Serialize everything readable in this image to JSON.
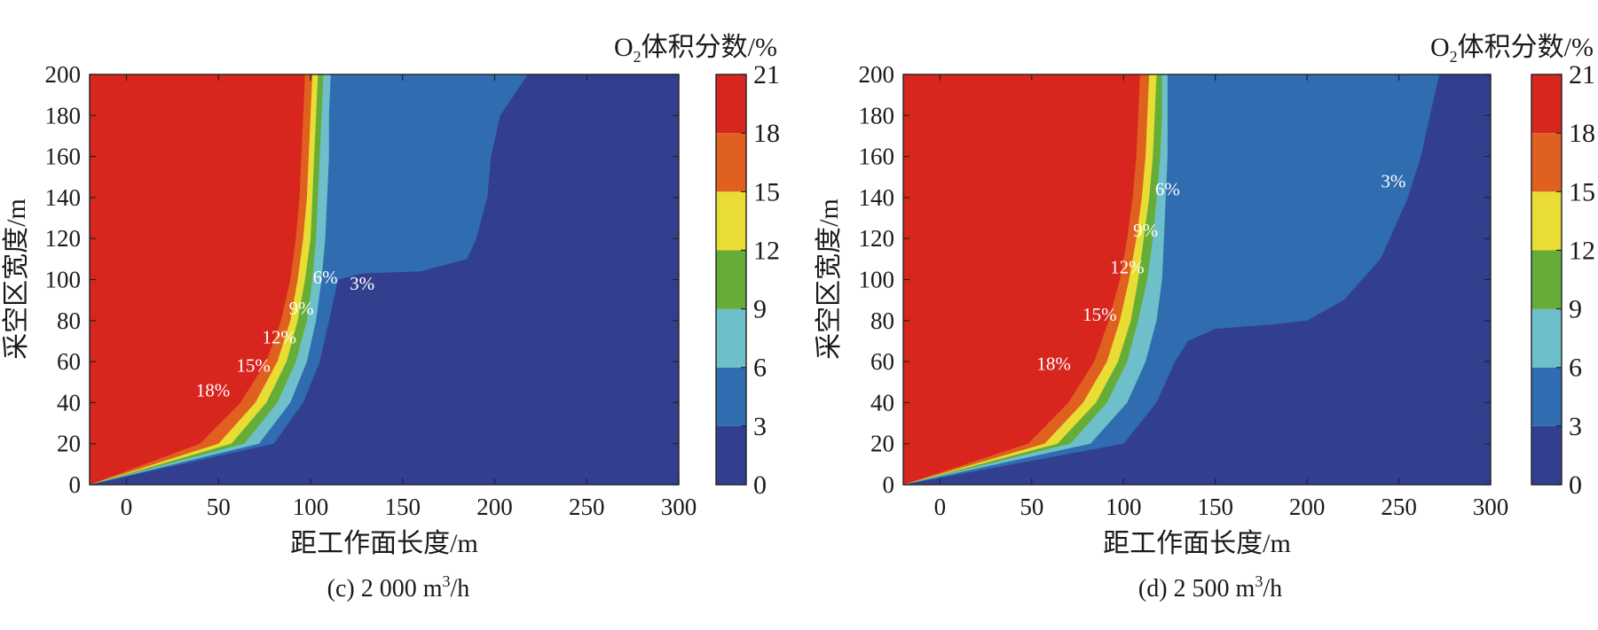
{
  "colors": {
    "level_0_3": "#323f8e",
    "level_3_6": "#2f6cb0",
    "level_6_9": "#6dbfc9",
    "level_9_12": "#66ad38",
    "level_12_15": "#e8dc35",
    "level_15_18": "#e0611f",
    "level_18_21": "#d8261f"
  },
  "chart_data": [
    {
      "type": "contour",
      "caption_prefix": "(c) 2 000 m",
      "caption_sup": "3",
      "caption_suffix": "/h",
      "xlabel": "距工作面长度/m",
      "ylabel": "采空区宽度/m",
      "colorbar_title_pre": "O",
      "colorbar_title_sub": "2",
      "colorbar_title_post": "体积分数/%",
      "xlim": [
        -20,
        300
      ],
      "ylim": [
        0,
        200
      ],
      "x_ticks": [
        "0",
        "50",
        "100",
        "150",
        "200",
        "250",
        "300"
      ],
      "y_ticks": [
        "0",
        "20",
        "40",
        "60",
        "80",
        "100",
        "120",
        "140",
        "160",
        "180",
        "200"
      ],
      "colorbar_ticks": [
        "0",
        "3",
        "6",
        "9",
        "12",
        "15",
        "18",
        "21"
      ],
      "contours": [
        {
          "level": 18,
          "x_at_y": [
            [
              0,
              -20
            ],
            [
              20,
              40
            ],
            [
              40,
              62
            ],
            [
              60,
              76
            ],
            [
              80,
              84
            ],
            [
              100,
              89
            ],
            [
              120,
              92
            ],
            [
              140,
              94
            ],
            [
              160,
              95
            ],
            [
              180,
              96
            ],
            [
              200,
              97
            ]
          ]
        },
        {
          "level": 15,
          "x_at_y": [
            [
              0,
              -20
            ],
            [
              20,
              50
            ],
            [
              40,
              70
            ],
            [
              60,
              82
            ],
            [
              80,
              89
            ],
            [
              100,
              93
            ],
            [
              120,
              96
            ],
            [
              140,
              98
            ],
            [
              160,
              99
            ],
            [
              180,
              100
            ],
            [
              200,
              101
            ]
          ]
        },
        {
          "level": 12,
          "x_at_y": [
            [
              0,
              -20
            ],
            [
              20,
              57
            ],
            [
              40,
              76
            ],
            [
              60,
              87
            ],
            [
              80,
              93
            ],
            [
              100,
              97
            ],
            [
              120,
              100
            ],
            [
              140,
              101
            ],
            [
              160,
              102
            ],
            [
              180,
              103
            ],
            [
              200,
              104
            ]
          ]
        },
        {
          "level": 9,
          "x_at_y": [
            [
              0,
              -20
            ],
            [
              20,
              64
            ],
            [
              40,
              82
            ],
            [
              60,
              92
            ],
            [
              80,
              98
            ],
            [
              100,
              101
            ],
            [
              120,
              103
            ],
            [
              140,
              104
            ],
            [
              160,
              105
            ],
            [
              180,
              106
            ],
            [
              200,
              107
            ]
          ]
        },
        {
          "level": 6,
          "x_at_y": [
            [
              0,
              -20
            ],
            [
              20,
              72
            ],
            [
              40,
              89
            ],
            [
              60,
              98
            ],
            [
              80,
              103
            ],
            [
              100,
              106
            ],
            [
              120,
              108
            ],
            [
              140,
              109
            ],
            [
              160,
              110
            ],
            [
              180,
              110
            ],
            [
              200,
              111
            ]
          ]
        },
        {
          "level": 3,
          "x_at_y": [
            [
              0,
              -20
            ],
            [
              20,
              80
            ],
            [
              40,
              96
            ],
            [
              60,
              105
            ],
            [
              80,
              110
            ],
            [
              100,
              115
            ],
            [
              103,
              128
            ],
            [
              104,
              160
            ],
            [
              110,
              185
            ],
            [
              120,
              190
            ],
            [
              140,
              196
            ],
            [
              160,
              198
            ],
            [
              180,
              203
            ],
            [
              200,
              218
            ]
          ]
        }
      ],
      "labels": [
        {
          "text": "18%",
          "x": 47,
          "y": 46
        },
        {
          "text": "15%",
          "x": 69,
          "y": 58
        },
        {
          "text": "12%",
          "x": 83,
          "y": 72
        },
        {
          "text": "9%",
          "x": 95,
          "y": 86
        },
        {
          "text": "6%",
          "x": 108,
          "y": 101
        },
        {
          "text": "3%",
          "x": 128,
          "y": 98
        }
      ]
    },
    {
      "type": "contour",
      "caption_prefix": "(d) 2 500 m",
      "caption_sup": "3",
      "caption_suffix": "/h",
      "xlabel": "距工作面长度/m",
      "ylabel": "采空区宽度/m",
      "colorbar_title_pre": "O",
      "colorbar_title_sub": "2",
      "colorbar_title_post": "体积分数/%",
      "xlim": [
        -20,
        300
      ],
      "ylim": [
        0,
        200
      ],
      "x_ticks": [
        "0",
        "50",
        "100",
        "150",
        "200",
        "250",
        "300"
      ],
      "y_ticks": [
        "0",
        "20",
        "40",
        "60",
        "80",
        "100",
        "120",
        "140",
        "160",
        "180",
        "200"
      ],
      "colorbar_ticks": [
        "0",
        "3",
        "6",
        "9",
        "12",
        "15",
        "18",
        "21"
      ],
      "contours": [
        {
          "level": 18,
          "x_at_y": [
            [
              0,
              -20
            ],
            [
              20,
              48
            ],
            [
              40,
              70
            ],
            [
              60,
              84
            ],
            [
              80,
              92
            ],
            [
              100,
              98
            ],
            [
              120,
              102
            ],
            [
              140,
              105
            ],
            [
              160,
              107
            ],
            [
              180,
              108
            ],
            [
              200,
              109
            ]
          ]
        },
        {
          "level": 15,
          "x_at_y": [
            [
              0,
              -20
            ],
            [
              20,
              57
            ],
            [
              40,
              78
            ],
            [
              60,
              91
            ],
            [
              80,
              98
            ],
            [
              100,
              103
            ],
            [
              120,
              107
            ],
            [
              140,
              110
            ],
            [
              160,
              112
            ],
            [
              180,
              113
            ],
            [
              200,
              114
            ]
          ]
        },
        {
          "level": 12,
          "x_at_y": [
            [
              0,
              -20
            ],
            [
              20,
              64
            ],
            [
              40,
              85
            ],
            [
              60,
              97
            ],
            [
              80,
              104
            ],
            [
              100,
              108
            ],
            [
              120,
              111
            ],
            [
              140,
              114
            ],
            [
              160,
              116
            ],
            [
              180,
              117
            ],
            [
              200,
              118
            ]
          ]
        },
        {
          "level": 9,
          "x_at_y": [
            [
              0,
              -20
            ],
            [
              20,
              71
            ],
            [
              40,
              91
            ],
            [
              60,
              102
            ],
            [
              80,
              108
            ],
            [
              100,
              113
            ],
            [
              120,
              116
            ],
            [
              140,
              118
            ],
            [
              160,
              120
            ],
            [
              180,
              121
            ],
            [
              200,
              121
            ]
          ]
        },
        {
          "level": 6,
          "x_at_y": [
            [
              0,
              -20
            ],
            [
              20,
              82
            ],
            [
              40,
              102
            ],
            [
              60,
              112
            ],
            [
              80,
              118
            ],
            [
              100,
              121
            ],
            [
              120,
              122
            ],
            [
              140,
              123
            ],
            [
              160,
              124
            ],
            [
              180,
              124
            ],
            [
              200,
              124
            ]
          ]
        },
        {
          "level": 3,
          "x_at_y": [
            [
              0,
              -20
            ],
            [
              20,
              100
            ],
            [
              40,
              118
            ],
            [
              60,
              128
            ],
            [
              70,
              135
            ],
            [
              76,
              150
            ],
            [
              78,
              180
            ],
            [
              80,
              200
            ],
            [
              90,
              220
            ],
            [
              110,
              240
            ],
            [
              140,
              255
            ],
            [
              160,
              262
            ],
            [
              180,
              267
            ],
            [
              200,
              272
            ]
          ]
        }
      ],
      "labels": [
        {
          "text": "18%",
          "x": 62,
          "y": 59
        },
        {
          "text": "15%",
          "x": 87,
          "y": 83
        },
        {
          "text": "12%",
          "x": 102,
          "y": 106
        },
        {
          "text": "9%",
          "x": 112,
          "y": 124
        },
        {
          "text": "6%",
          "x": 124,
          "y": 144
        },
        {
          "text": "3%",
          "x": 247,
          "y": 148
        }
      ]
    }
  ]
}
